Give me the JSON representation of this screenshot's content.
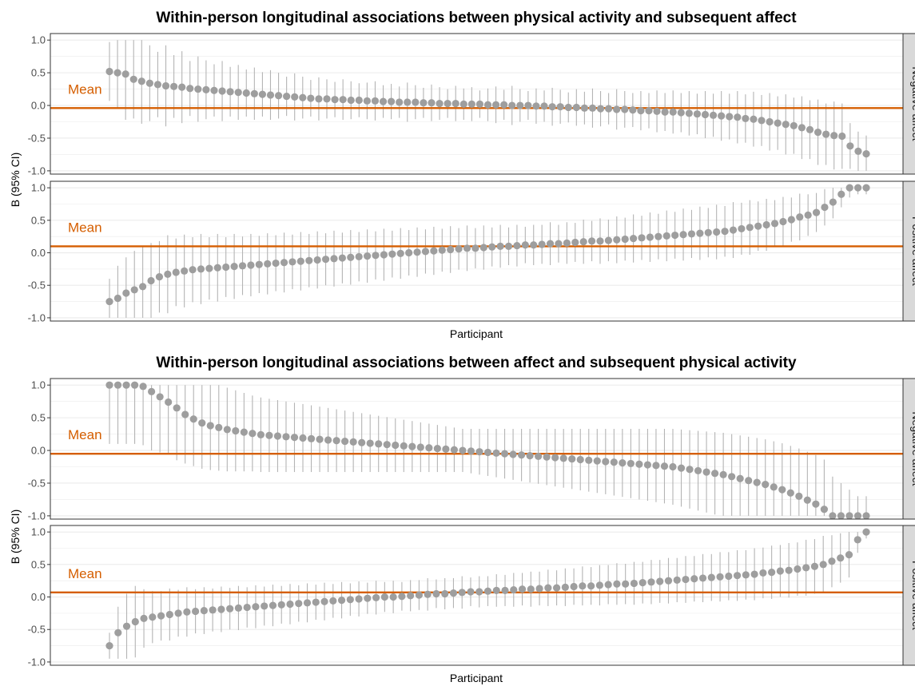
{
  "colors": {
    "accent": "#D55E00",
    "points": "#9E9E9E",
    "ci": "#B4B4B4",
    "strip": "#D9D9D9",
    "grid": "#EBEBEB"
  },
  "chart_data": [
    {
      "type": "scatter",
      "title": "Within-person longitudinal associations between physical activity and subsequent affect",
      "xlabel": "Participant",
      "ylabel": "B (95% CI)",
      "ylim": [
        -1.05,
        1.1
      ],
      "y_ticks": [
        "1.0",
        "0.5",
        "0.0",
        "-0.5",
        "-1.0"
      ],
      "grid": true,
      "mean_label": "Mean",
      "facets": [
        {
          "label": "Negative affect",
          "mean": -0.04,
          "estimates": [
            0.52,
            0.5,
            0.48,
            0.4,
            0.37,
            0.34,
            0.32,
            0.3,
            0.29,
            0.28,
            0.26,
            0.25,
            0.24,
            0.23,
            0.22,
            0.21,
            0.2,
            0.19,
            0.18,
            0.17,
            0.16,
            0.15,
            0.14,
            0.13,
            0.12,
            0.11,
            0.1,
            0.1,
            0.09,
            0.09,
            0.08,
            0.08,
            0.07,
            0.07,
            0.06,
            0.06,
            0.05,
            0.05,
            0.05,
            0.04,
            0.04,
            0.03,
            0.03,
            0.03,
            0.02,
            0.02,
            0.02,
            0.01,
            0.01,
            0.01,
            0.0,
            0.0,
            0.0,
            -0.01,
            -0.01,
            -0.02,
            -0.02,
            -0.03,
            -0.03,
            -0.04,
            -0.04,
            -0.05,
            -0.05,
            -0.06,
            -0.06,
            -0.07,
            -0.08,
            -0.08,
            -0.09,
            -0.1,
            -0.1,
            -0.11,
            -0.12,
            -0.13,
            -0.14,
            -0.15,
            -0.16,
            -0.17,
            -0.18,
            -0.2,
            -0.21,
            -0.23,
            -0.25,
            -0.27,
            -0.29,
            -0.31,
            -0.34,
            -0.37,
            -0.41,
            -0.44,
            -0.46,
            -0.47,
            -0.62,
            -0.7,
            -0.74
          ],
          "half_widths": [
            0.45,
            0.55,
            0.7,
            0.6,
            0.65,
            0.58,
            0.5,
            0.62,
            0.48,
            0.55,
            0.42,
            0.5,
            0.45,
            0.4,
            0.46,
            0.38,
            0.42,
            0.36,
            0.4,
            0.34,
            0.38,
            0.35,
            0.3,
            0.36,
            0.32,
            0.28,
            0.33,
            0.3,
            0.27,
            0.31,
            0.29,
            0.26,
            0.28,
            0.3,
            0.25,
            0.27,
            0.24,
            0.3,
            0.26,
            0.23,
            0.28,
            0.25,
            0.22,
            0.27,
            0.24,
            0.26,
            0.21,
            0.25,
            0.28,
            0.23,
            0.3,
            0.25,
            0.22,
            0.27,
            0.24,
            0.29,
            0.26,
            0.23,
            0.28,
            0.25,
            0.3,
            0.27,
            0.24,
            0.31,
            0.28,
            0.26,
            0.3,
            0.27,
            0.32,
            0.29,
            0.33,
            0.3,
            0.34,
            0.31,
            0.36,
            0.33,
            0.38,
            0.35,
            0.4,
            0.37,
            0.42,
            0.39,
            0.44,
            0.41,
            0.46,
            0.43,
            0.48,
            0.45,
            0.5,
            0.47,
            0.52,
            0.5,
            0.35,
            0.3,
            0.28
          ]
        },
        {
          "label": "Positive affect",
          "mean": 0.1,
          "estimates": [
            -0.75,
            -0.7,
            -0.62,
            -0.57,
            -0.52,
            -0.43,
            -0.37,
            -0.33,
            -0.3,
            -0.28,
            -0.26,
            -0.25,
            -0.24,
            -0.23,
            -0.22,
            -0.21,
            -0.2,
            -0.19,
            -0.18,
            -0.17,
            -0.16,
            -0.15,
            -0.14,
            -0.13,
            -0.12,
            -0.11,
            -0.1,
            -0.09,
            -0.08,
            -0.07,
            -0.06,
            -0.05,
            -0.04,
            -0.03,
            -0.02,
            -0.01,
            0.0,
            0.01,
            0.02,
            0.03,
            0.04,
            0.05,
            0.06,
            0.07,
            0.07,
            0.08,
            0.09,
            0.1,
            0.1,
            0.11,
            0.12,
            0.12,
            0.13,
            0.14,
            0.14,
            0.15,
            0.16,
            0.17,
            0.18,
            0.18,
            0.19,
            0.2,
            0.21,
            0.22,
            0.23,
            0.24,
            0.25,
            0.26,
            0.27,
            0.28,
            0.29,
            0.3,
            0.31,
            0.32,
            0.33,
            0.35,
            0.37,
            0.39,
            0.41,
            0.43,
            0.45,
            0.48,
            0.51,
            0.55,
            0.58,
            0.62,
            0.7,
            0.78,
            0.9,
            1.0,
            1.0,
            1.0
          ],
          "half_widths": [
            0.35,
            0.5,
            0.55,
            0.6,
            0.62,
            0.58,
            0.55,
            0.6,
            0.52,
            0.56,
            0.5,
            0.54,
            0.48,
            0.52,
            0.46,
            0.5,
            0.45,
            0.48,
            0.44,
            0.47,
            0.43,
            0.46,
            0.42,
            0.45,
            0.41,
            0.44,
            0.4,
            0.43,
            0.39,
            0.42,
            0.38,
            0.41,
            0.37,
            0.4,
            0.36,
            0.39,
            0.35,
            0.38,
            0.34,
            0.37,
            0.33,
            0.36,
            0.32,
            0.35,
            0.31,
            0.34,
            0.3,
            0.33,
            0.29,
            0.32,
            0.28,
            0.31,
            0.3,
            0.33,
            0.29,
            0.32,
            0.3,
            0.34,
            0.31,
            0.35,
            0.32,
            0.36,
            0.33,
            0.37,
            0.34,
            0.38,
            0.35,
            0.39,
            0.36,
            0.4,
            0.37,
            0.41,
            0.38,
            0.42,
            0.39,
            0.43,
            0.4,
            0.42,
            0.38,
            0.4,
            0.36,
            0.38,
            0.34,
            0.36,
            0.32,
            0.3,
            0.28,
            0.25,
            0.2,
            0.15,
            0.1,
            0.1
          ]
        }
      ]
    },
    {
      "type": "scatter",
      "title": "Within-person longitudinal associations between affect and subsequent physical activity",
      "xlabel": "Participant",
      "ylabel": "B (95% CI)",
      "ylim": [
        -1.05,
        1.1
      ],
      "y_ticks": [
        "1.0",
        "0.5",
        "0.0",
        "-0.5",
        "-1.0"
      ],
      "grid": true,
      "mean_label": "Mean",
      "facets": [
        {
          "label": "Negative affect",
          "mean": -0.05,
          "estimates": [
            1.0,
            1.0,
            1.0,
            1.0,
            0.98,
            0.9,
            0.82,
            0.74,
            0.65,
            0.55,
            0.48,
            0.42,
            0.38,
            0.35,
            0.32,
            0.3,
            0.28,
            0.26,
            0.24,
            0.23,
            0.22,
            0.21,
            0.2,
            0.19,
            0.18,
            0.17,
            0.16,
            0.15,
            0.14,
            0.13,
            0.12,
            0.11,
            0.1,
            0.09,
            0.08,
            0.07,
            0.06,
            0.05,
            0.04,
            0.03,
            0.02,
            0.01,
            0.0,
            -0.01,
            -0.02,
            -0.03,
            -0.04,
            -0.05,
            -0.06,
            -0.07,
            -0.08,
            -0.09,
            -0.1,
            -0.11,
            -0.12,
            -0.13,
            -0.14,
            -0.15,
            -0.16,
            -0.17,
            -0.18,
            -0.19,
            -0.2,
            -0.21,
            -0.22,
            -0.23,
            -0.24,
            -0.25,
            -0.27,
            -0.29,
            -0.31,
            -0.33,
            -0.35,
            -0.37,
            -0.4,
            -0.43,
            -0.46,
            -0.49,
            -0.52,
            -0.56,
            -0.6,
            -0.65,
            -0.7,
            -0.76,
            -0.82,
            -0.9,
            -1.0,
            -1.0,
            -1.0,
            -1.0,
            -1.0
          ],
          "half_widths": [
            0.9,
            0.9,
            0.9,
            0.9,
            0.9,
            0.9,
            0.85,
            0.8,
            0.8,
            0.75,
            0.72,
            0.7,
            0.68,
            0.66,
            0.64,
            0.62,
            0.6,
            0.58,
            0.57,
            0.56,
            0.55,
            0.54,
            0.53,
            0.52,
            0.51,
            0.5,
            0.49,
            0.48,
            0.47,
            0.46,
            0.45,
            0.44,
            0.43,
            0.42,
            0.41,
            0.4,
            0.39,
            0.38,
            0.37,
            0.36,
            0.35,
            0.34,
            0.33,
            0.34,
            0.35,
            0.36,
            0.37,
            0.38,
            0.39,
            0.4,
            0.41,
            0.42,
            0.43,
            0.44,
            0.45,
            0.46,
            0.47,
            0.48,
            0.49,
            0.5,
            0.51,
            0.52,
            0.53,
            0.54,
            0.55,
            0.56,
            0.57,
            0.58,
            0.59,
            0.6,
            0.61,
            0.62,
            0.63,
            0.64,
            0.65,
            0.66,
            0.67,
            0.68,
            0.69,
            0.7,
            0.71,
            0.72,
            0.73,
            0.74,
            0.75,
            0.76,
            0.6,
            0.5,
            0.4,
            0.3,
            0.3
          ]
        },
        {
          "label": "Positive affect",
          "mean": 0.07,
          "estimates": [
            -0.75,
            -0.55,
            -0.45,
            -0.38,
            -0.33,
            -0.31,
            -0.29,
            -0.27,
            -0.25,
            -0.23,
            -0.22,
            -0.21,
            -0.2,
            -0.19,
            -0.18,
            -0.17,
            -0.16,
            -0.15,
            -0.14,
            -0.13,
            -0.12,
            -0.11,
            -0.1,
            -0.09,
            -0.08,
            -0.07,
            -0.06,
            -0.05,
            -0.04,
            -0.03,
            -0.02,
            -0.01,
            0.0,
            0.0,
            0.01,
            0.02,
            0.03,
            0.04,
            0.05,
            0.05,
            0.06,
            0.07,
            0.08,
            0.08,
            0.09,
            0.1,
            0.1,
            0.11,
            0.12,
            0.12,
            0.13,
            0.14,
            0.14,
            0.15,
            0.16,
            0.17,
            0.17,
            0.18,
            0.19,
            0.2,
            0.2,
            0.21,
            0.22,
            0.23,
            0.24,
            0.25,
            0.26,
            0.27,
            0.28,
            0.29,
            0.3,
            0.31,
            0.32,
            0.33,
            0.34,
            0.35,
            0.37,
            0.38,
            0.4,
            0.41,
            0.43,
            0.45,
            0.47,
            0.5,
            0.55,
            0.6,
            0.65,
            0.88,
            1.0
          ],
          "half_widths": [
            0.2,
            0.4,
            0.5,
            0.55,
            0.45,
            0.4,
            0.38,
            0.4,
            0.36,
            0.38,
            0.34,
            0.36,
            0.33,
            0.35,
            0.32,
            0.34,
            0.31,
            0.33,
            0.3,
            0.32,
            0.29,
            0.31,
            0.28,
            0.3,
            0.27,
            0.29,
            0.26,
            0.28,
            0.25,
            0.27,
            0.24,
            0.26,
            0.23,
            0.25,
            0.22,
            0.24,
            0.23,
            0.25,
            0.22,
            0.24,
            0.23,
            0.25,
            0.22,
            0.24,
            0.23,
            0.25,
            0.24,
            0.26,
            0.25,
            0.27,
            0.26,
            0.28,
            0.27,
            0.29,
            0.28,
            0.3,
            0.29,
            0.31,
            0.3,
            0.32,
            0.31,
            0.33,
            0.32,
            0.34,
            0.33,
            0.35,
            0.34,
            0.36,
            0.35,
            0.37,
            0.36,
            0.38,
            0.37,
            0.39,
            0.38,
            0.4,
            0.39,
            0.41,
            0.4,
            0.42,
            0.41,
            0.43,
            0.42,
            0.44,
            0.4,
            0.38,
            0.35,
            0.2,
            0.1
          ]
        }
      ]
    }
  ]
}
